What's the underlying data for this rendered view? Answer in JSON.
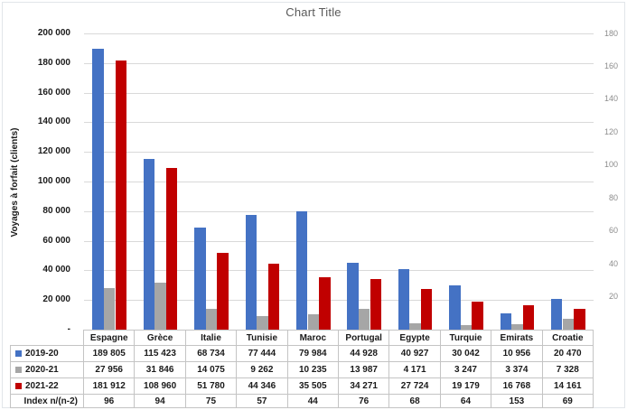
{
  "title": "Chart Title",
  "y_axis": {
    "label": "Voyages à forfait (clients)",
    "min": 0,
    "max": 200000,
    "step": 20000,
    "tick_labels": [
      "200 000",
      "180 000",
      "160 000",
      "140 000",
      "120 000",
      "100 000",
      "80 000",
      "60 000",
      "40 000",
      "20 000",
      "-"
    ]
  },
  "y2_axis": {
    "min": 0,
    "max": 180,
    "step": 20,
    "tick_labels": [
      "180",
      "160",
      "140",
      "120",
      "100",
      "80",
      "60",
      "40",
      "20"
    ]
  },
  "colors": {
    "series_blue": "#4472C4",
    "series_gray": "#A6A6A6",
    "series_red": "#C00000",
    "gridline": "#d9d9d9",
    "title_text": "#595959"
  },
  "chart_data": {
    "type": "bar",
    "title": "Chart Title",
    "ylabel": "Voyages à forfait (clients)",
    "ylim": [
      0,
      200000
    ],
    "y2lim": [
      0,
      180
    ],
    "grid": true,
    "legend_position": "data-table",
    "categories": [
      "Espagne",
      "Grèce",
      "Italie",
      "Tunisie",
      "Maroc",
      "Portugal",
      "Egypte",
      "Turquie",
      "Emirats",
      "Croatie"
    ],
    "series": [
      {
        "name": "2019-20",
        "color": "#4472C4",
        "values": [
          189805,
          115423,
          68734,
          77444,
          79984,
          44928,
          40927,
          30042,
          10956,
          20470
        ]
      },
      {
        "name": "2020-21",
        "color": "#A6A6A6",
        "values": [
          27956,
          31846,
          14075,
          9262,
          10235,
          13987,
          4171,
          3247,
          3374,
          7328
        ]
      },
      {
        "name": "2021-22",
        "color": "#C00000",
        "values": [
          181912,
          108960,
          51780,
          44346,
          35505,
          34271,
          27724,
          19179,
          16768,
          14161
        ]
      }
    ],
    "index_row": {
      "label": "Index n/(n-2)",
      "values": [
        96,
        94,
        75,
        57,
        44,
        76,
        68,
        64,
        153,
        69
      ]
    }
  }
}
